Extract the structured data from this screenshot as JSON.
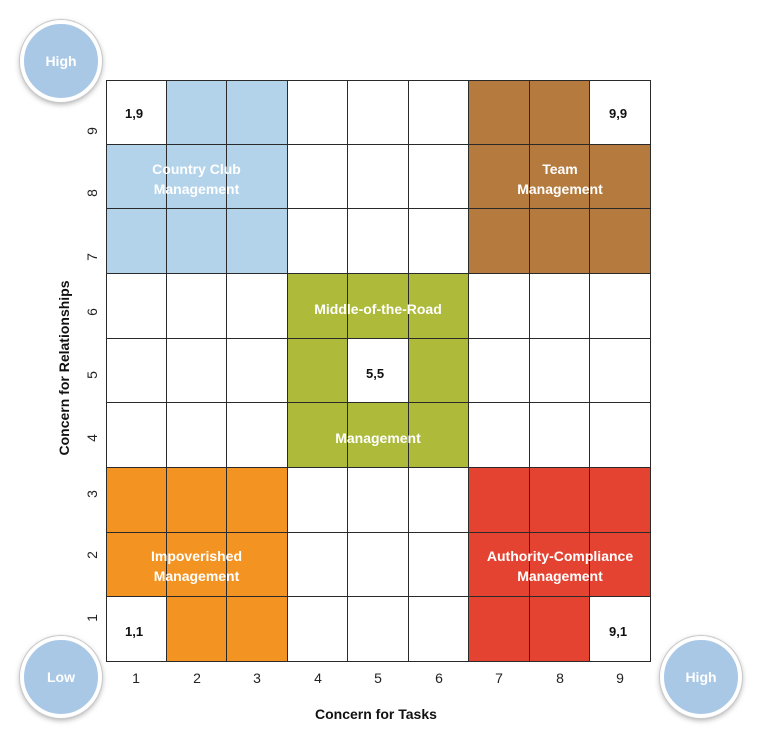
{
  "axes": {
    "x_label": "Concern for Tasks",
    "y_label": "Concern for Relationships",
    "x_ticks": [
      "1",
      "2",
      "3",
      "4",
      "5",
      "6",
      "7",
      "8",
      "9"
    ],
    "y_ticks": [
      "1",
      "2",
      "3",
      "4",
      "5",
      "6",
      "7",
      "8",
      "9"
    ]
  },
  "badges": {
    "top_left": "High",
    "bottom_left": "Low",
    "bottom_right": "High"
  },
  "regions": {
    "country_club": {
      "line1": "Country Club",
      "line2": "Management",
      "color": "#b2d3ea"
    },
    "team": {
      "line1": "Team",
      "line2": "Management",
      "color": "#b57a3d"
    },
    "middle": {
      "line1": "Middle-of-the-Road",
      "line2": "Management",
      "color": "#adba3a"
    },
    "impoverished": {
      "line1": "Impoverished",
      "line2": "Management",
      "color": "#f39322"
    },
    "authority": {
      "line1": "Authority-Compliance",
      "line2": "Management",
      "color": "#e44332"
    }
  },
  "coordinates": {
    "c19": "1,9",
    "c99": "9,9",
    "c55": "5,5",
    "c11": "1,1",
    "c91": "9,1"
  }
}
